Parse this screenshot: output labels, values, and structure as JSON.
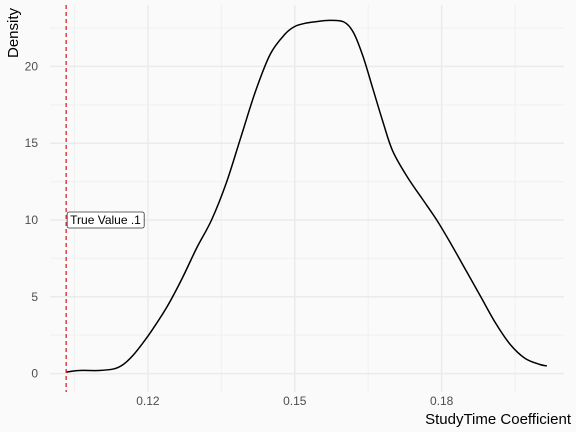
{
  "chart_data": {
    "type": "line",
    "subtype": "density",
    "title": "",
    "xlabel": "StudyTime Coefficient",
    "ylabel": "Density",
    "xlim": [
      0.1,
      0.205
    ],
    "ylim": [
      -1.2,
      24.0
    ],
    "x_ticks": [
      0.12,
      0.15,
      0.18
    ],
    "x_tick_labels": [
      "0.12",
      "0.15",
      "0.18"
    ],
    "y_ticks": [
      0,
      5,
      10,
      15,
      20
    ],
    "y_tick_labels": [
      "0",
      "5",
      "10",
      "15",
      "20"
    ],
    "grid": true,
    "line_color": "#000000",
    "series": [
      {
        "x": [
          0.1033,
          0.106,
          0.11,
          0.113,
          0.115,
          0.117,
          0.119,
          0.121,
          0.124,
          0.127,
          0.13,
          0.133,
          0.136,
          0.139,
          0.142,
          0.145,
          0.148,
          0.15,
          0.152,
          0.154,
          0.157,
          0.16,
          0.162,
          0.164,
          0.166,
          0.168,
          0.17,
          0.173,
          0.176,
          0.179,
          0.182,
          0.185,
          0.188,
          0.191,
          0.194,
          0.197,
          0.2,
          0.2015
        ],
        "y": [
          0.1,
          0.2,
          0.2,
          0.3,
          0.6,
          1.2,
          2.0,
          2.9,
          4.4,
          6.2,
          8.2,
          10.0,
          12.4,
          15.4,
          18.4,
          20.8,
          22.1,
          22.6,
          22.8,
          22.9,
          23.0,
          22.9,
          22.2,
          20.6,
          18.5,
          16.4,
          14.5,
          12.8,
          11.4,
          10.0,
          8.4,
          6.7,
          5.0,
          3.3,
          1.9,
          1.0,
          0.6,
          0.5
        ]
      }
    ],
    "reference_line": {
      "x": 0.1033,
      "color": "#d62728",
      "style": "dashed"
    },
    "annotations": [
      {
        "text": "True Value .1",
        "x": 0.1033,
        "y": 10
      }
    ]
  }
}
